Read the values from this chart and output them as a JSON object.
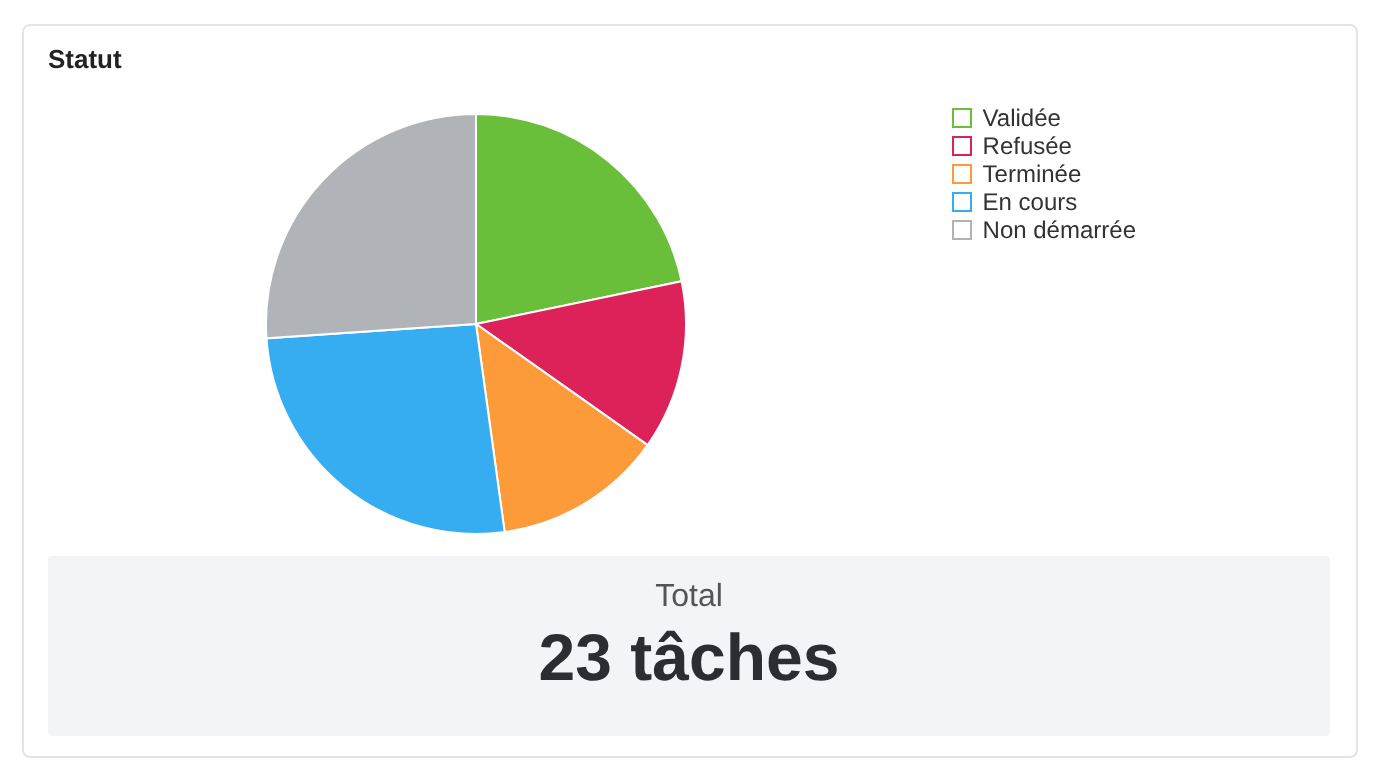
{
  "chart_data": {
    "type": "pie",
    "title": "Statut",
    "categories": [
      "Validée",
      "Refusée",
      "Terminée",
      "En cours",
      "Non démarrée"
    ],
    "values": [
      21.74,
      13.04,
      13.04,
      26.09,
      26.09
    ],
    "colors": [
      "#6abf3a",
      "#dd2159",
      "#fd9a3a",
      "#36adf0",
      "#b0b3b8"
    ],
    "legend": "top right",
    "annotations": [
      "Total",
      "23 tâches"
    ]
  }
}
